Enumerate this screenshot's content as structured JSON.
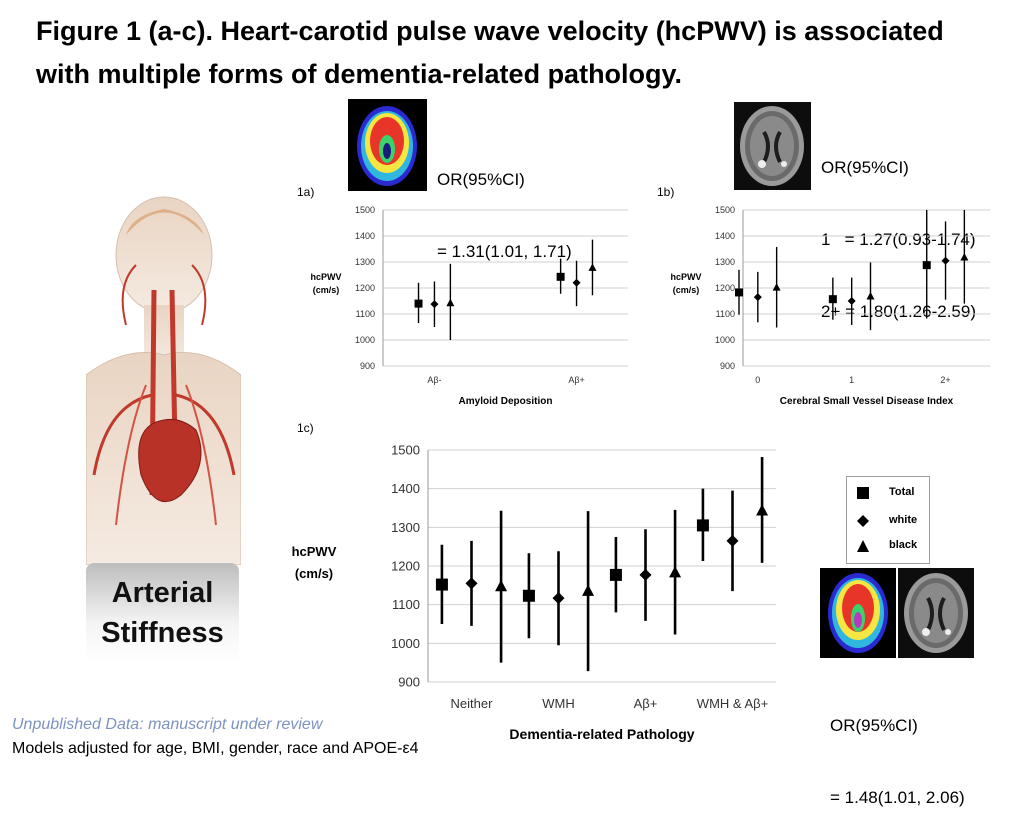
{
  "title": "Figure 1 (a-c). Heart-carotid pulse wave velocity (hcPWV) is associated with multiple forms of dementia-related pathology.",
  "side_label": [
    "Arterial",
    "Stiffness"
  ],
  "odds_ratios": {
    "a": [
      "OR(95%CI)",
      "= 1.31(1.01, 1.71)"
    ],
    "b": [
      "OR(95%CI)",
      "1   = 1.27(0.93-1.74)",
      "2+ = 1.80(1.26-2.59)"
    ],
    "c": [
      "OR(95%CI)",
      "= 1.48(1.01, 2.06)"
    ]
  },
  "legend": [
    {
      "label": "Total",
      "marker": "square"
    },
    {
      "label": "white",
      "marker": "diamond"
    },
    {
      "label": "black",
      "marker": "triangle"
    }
  ],
  "footer": {
    "note_italic": "Unpublished Data: manuscript under review",
    "note": "Models adjusted for age, BMI, gender, race and APOE-ε4"
  },
  "colors": {
    "bar": "#000000",
    "grid": "#d0d0d0",
    "footer_italic": "#7c93c2",
    "anatomy_red": "#c0392b"
  },
  "icons": [
    "pet-brain-scan",
    "mri-brain-scan",
    "human-anatomy-figure"
  ],
  "chart_data": [
    {
      "panel": "1a)",
      "type": "scatter",
      "xlabel": "Amyloid Deposition",
      "ylabel": "hcPWV (cm/s)",
      "ylim": [
        900,
        1500
      ],
      "yticks": [
        900,
        1000,
        1100,
        1200,
        1300,
        1400,
        1500
      ],
      "categories": [
        "Aβ-",
        "Aβ+"
      ],
      "grid": true,
      "series": [
        {
          "name": "Total",
          "marker": "square",
          "points": [
            {
              "category": "Aβ-",
              "value": 1140,
              "lower": 1065,
              "upper": 1220
            },
            {
              "category": "Aβ+",
              "value": 1243,
              "lower": 1178,
              "upper": 1313
            }
          ]
        },
        {
          "name": "white",
          "marker": "diamond",
          "points": [
            {
              "category": "Aβ-",
              "value": 1138,
              "lower": 1050,
              "upper": 1225
            },
            {
              "category": "Aβ+",
              "value": 1220,
              "lower": 1130,
              "upper": 1305
            }
          ]
        },
        {
          "name": "black",
          "marker": "triangle",
          "points": [
            {
              "category": "Aβ-",
              "value": 1142,
              "lower": 1000,
              "upper": 1293
            },
            {
              "category": "Aβ+",
              "value": 1278,
              "lower": 1172,
              "upper": 1386
            }
          ]
        }
      ]
    },
    {
      "panel": "1b)",
      "type": "scatter",
      "xlabel": "Cerebral Small Vessel Disease Index",
      "ylabel": "hcPWV (cm/s)",
      "ylim": [
        900,
        1500
      ],
      "yticks": [
        900,
        1000,
        1100,
        1200,
        1300,
        1400,
        1500
      ],
      "categories": [
        "0",
        "1",
        "2+"
      ],
      "grid": true,
      "series": [
        {
          "name": "Total",
          "marker": "square",
          "points": [
            {
              "category": "0",
              "value": 1183,
              "lower": 1097,
              "upper": 1270
            },
            {
              "category": "1",
              "value": 1157,
              "lower": 1078,
              "upper": 1240
            },
            {
              "category": "2+",
              "value": 1288,
              "lower": 1083,
              "upper": 1500
            }
          ]
        },
        {
          "name": "white",
          "marker": "diamond",
          "points": [
            {
              "category": "0",
              "value": 1165,
              "lower": 1068,
              "upper": 1262
            },
            {
              "category": "1",
              "value": 1150,
              "lower": 1058,
              "upper": 1240
            },
            {
              "category": "2+",
              "value": 1305,
              "lower": 1155,
              "upper": 1456
            }
          ]
        },
        {
          "name": "black",
          "marker": "triangle",
          "points": [
            {
              "category": "0",
              "value": 1202,
              "lower": 1048,
              "upper": 1358
            },
            {
              "category": "1",
              "value": 1168,
              "lower": 1038,
              "upper": 1298
            },
            {
              "category": "2+",
              "value": 1318,
              "lower": 1140,
              "upper": 1500
            }
          ]
        }
      ]
    },
    {
      "panel": "1c)",
      "type": "scatter",
      "xlabel": "Dementia-related Pathology",
      "ylabel": "hcPWV (cm/s)",
      "ylim": [
        900,
        1500
      ],
      "yticks": [
        900,
        1000,
        1100,
        1200,
        1300,
        1400,
        1500
      ],
      "categories": [
        "Neither",
        "WMH",
        "Aβ+",
        "WMH & Aβ+"
      ],
      "grid": true,
      "legend": "right",
      "series": [
        {
          "name": "Total",
          "marker": "square",
          "points": [
            {
              "category": "Neither",
              "value": 1152,
              "lower": 1050,
              "upper": 1255
            },
            {
              "category": "WMH",
              "value": 1123,
              "lower": 1013,
              "upper": 1233
            },
            {
              "category": "Aβ+",
              "value": 1177,
              "lower": 1080,
              "upper": 1275
            },
            {
              "category": "WMH & Aβ+",
              "value": 1305,
              "lower": 1213,
              "upper": 1400
            }
          ]
        },
        {
          "name": "white",
          "marker": "diamond",
          "points": [
            {
              "category": "Neither",
              "value": 1155,
              "lower": 1045,
              "upper": 1265
            },
            {
              "category": "WMH",
              "value": 1117,
              "lower": 995,
              "upper": 1238
            },
            {
              "category": "Aβ+",
              "value": 1177,
              "lower": 1058,
              "upper": 1295
            },
            {
              "category": "WMH & Aβ+",
              "value": 1265,
              "lower": 1135,
              "upper": 1395
            }
          ]
        },
        {
          "name": "black",
          "marker": "triangle",
          "points": [
            {
              "category": "Neither",
              "value": 1147,
              "lower": 950,
              "upper": 1343
            },
            {
              "category": "WMH",
              "value": 1135,
              "lower": 928,
              "upper": 1342
            },
            {
              "category": "Aβ+",
              "value": 1183,
              "lower": 1023,
              "upper": 1345
            },
            {
              "category": "WMH & Aβ+",
              "value": 1343,
              "lower": 1208,
              "upper": 1482
            }
          ]
        }
      ]
    }
  ]
}
